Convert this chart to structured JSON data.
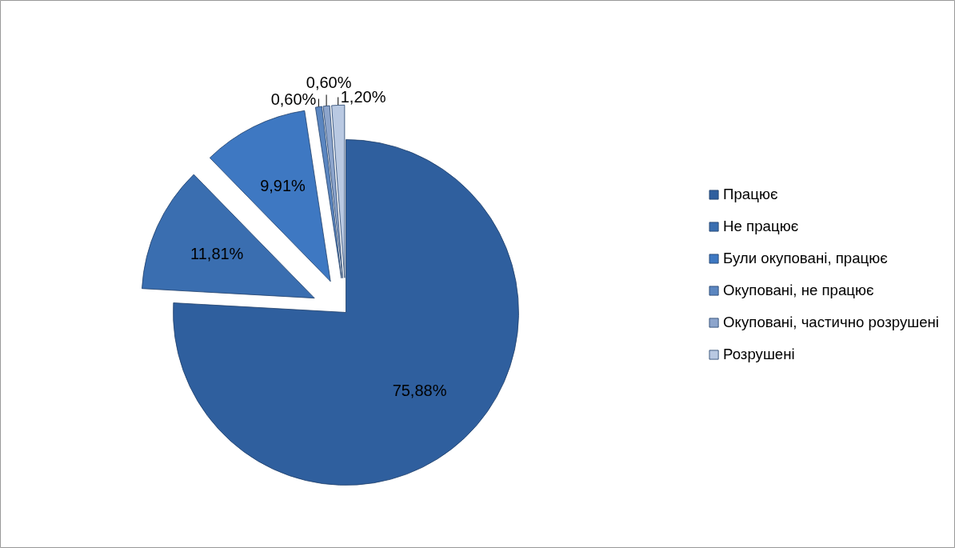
{
  "chart_data": {
    "type": "pie",
    "categories": [
      "Працює",
      "Не працює",
      "Були окуповані, працює",
      "Окуповані, не працює",
      "Окуповані, частично розрушені",
      "Розрушені"
    ],
    "values": [
      75.88,
      11.81,
      9.91,
      0.6,
      0.6,
      1.2
    ],
    "value_labels": [
      "75,88%",
      "11,81%",
      "9,91%",
      "0,60%",
      "0,60%",
      "1,20%"
    ],
    "colors": [
      "#2f5f9e",
      "#3a6eb0",
      "#3e78c2",
      "#5b86c0",
      "#8da5cc",
      "#b9c9e2"
    ],
    "legend": "right"
  }
}
